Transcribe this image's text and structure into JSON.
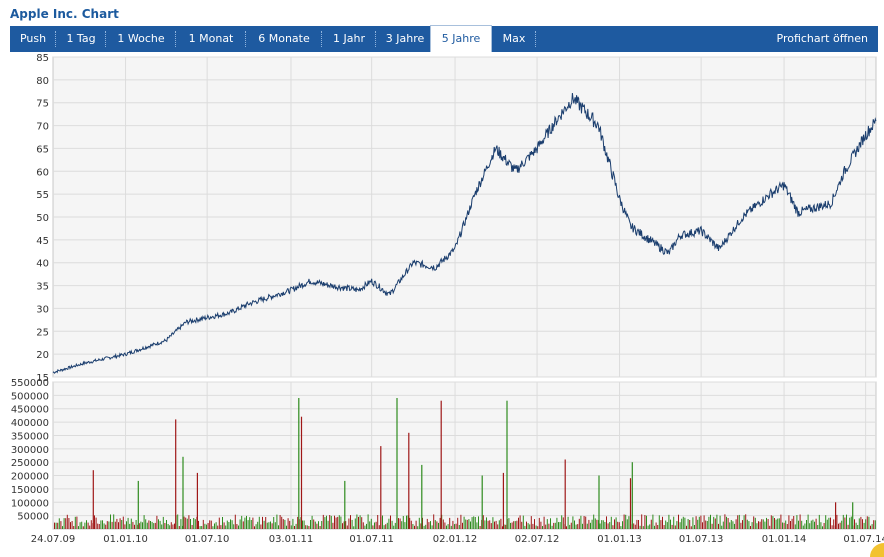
{
  "header": {
    "title": "Apple Inc. Chart"
  },
  "tabs": [
    {
      "label": "Push"
    },
    {
      "label": "1 Tag"
    },
    {
      "label": "1 Woche"
    },
    {
      "label": "1 Monat"
    },
    {
      "label": "6 Monate"
    },
    {
      "label": "1 Jahr"
    },
    {
      "label": "3 Jahre"
    },
    {
      "label": "5 Jahre",
      "active": true
    },
    {
      "label": "Max"
    }
  ],
  "pro_link": "Profichart öffnen",
  "colors": {
    "tab_bar": "#1e5aa0",
    "price_line": "#1b3e6e",
    "volume_up": "#2e8b1e",
    "volume_down": "#a01818",
    "plot_bg": "#f5f5f5",
    "grid": "#dcdcdc"
  },
  "chart_data": [
    {
      "type": "line",
      "ylim": [
        15,
        85
      ],
      "yticks": [
        15,
        20,
        25,
        30,
        35,
        40,
        45,
        50,
        55,
        60,
        65,
        70,
        75,
        80,
        85
      ],
      "x": [
        "2009-07-24",
        "2009-10-01",
        "2010-01-01",
        "2010-04-01",
        "2010-05-15",
        "2010-07-01",
        "2010-08-20",
        "2010-10-01",
        "2011-01-03",
        "2011-02-15",
        "2011-04-01",
        "2011-06-01",
        "2011-07-01",
        "2011-08-10",
        "2011-10-01",
        "2011-11-20",
        "2012-01-02",
        "2012-02-15",
        "2012-04-01",
        "2012-05-15",
        "2012-07-02",
        "2012-08-20",
        "2012-09-20",
        "2012-11-15",
        "2013-01-01",
        "2013-01-25",
        "2013-04-20",
        "2013-05-15",
        "2013-07-01",
        "2013-08-10",
        "2013-10-01",
        "2013-12-01",
        "2014-01-01",
        "2014-02-01",
        "2014-04-15",
        "2014-05-15",
        "2014-07-01",
        "2014-07-24"
      ],
      "series": [
        {
          "values": [
            16,
            18,
            20,
            23,
            27,
            28,
            29,
            31,
            34,
            36,
            35,
            34,
            36,
            33,
            40,
            39,
            43,
            55,
            65,
            60,
            65,
            72,
            76,
            70,
            54,
            48,
            42,
            46,
            47,
            43,
            50,
            55,
            57,
            51,
            53,
            60,
            68,
            71
          ]
        }
      ],
      "title": "",
      "xlabel": "",
      "ylabel": "",
      "grid": true
    },
    {
      "type": "bar",
      "ylim": [
        0,
        550000
      ],
      "yticks": [
        50000,
        100000,
        150000,
        200000,
        250000,
        300000,
        350000,
        400000,
        450000,
        500000,
        550000
      ],
      "xticks": [
        "24.07.09",
        "01.01.10",
        "01.07.10",
        "03.01.11",
        "01.07.11",
        "02.01.12",
        "02.07.12",
        "01.01.13",
        "01.07.13",
        "01.01.14",
        "01.07.14"
      ],
      "series": [
        {
          "values": [
            220000,
            180000,
            410000,
            270000,
            210000,
            490000,
            420000,
            180000,
            310000,
            490000,
            360000,
            240000,
            480000,
            200000,
            210000,
            480000,
            260000,
            200000,
            190000,
            250000,
            100000,
            100000
          ]
        }
      ],
      "grid": true
    }
  ]
}
